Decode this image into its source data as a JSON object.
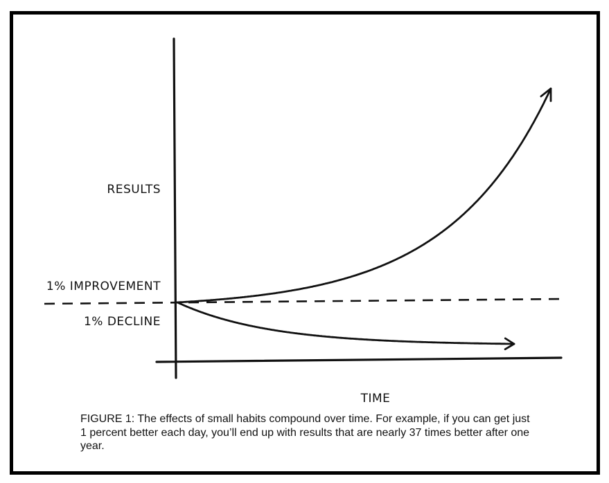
{
  "chart_data": {
    "type": "line",
    "title": "",
    "xlabel": "TIME",
    "ylabel": "RESULTS",
    "series": [
      {
        "name": "1% IMPROVEMENT",
        "growth_per_step": 1.01,
        "steps": 365,
        "style": "solid",
        "arrow": true
      },
      {
        "name": "1% DECLINE",
        "growth_per_step": 0.99,
        "steps": 365,
        "style": "solid",
        "arrow": true
      }
    ],
    "baseline": {
      "style": "dashed"
    },
    "grid": false,
    "legend": "none"
  },
  "caption": "FIGURE 1: The effects of small habits compound over time. For example, if you can get just 1 percent better each day, you’ll end up with results that are nearly 37 times better after one year.",
  "colors": {
    "ink": "#111111",
    "border": "#000000",
    "background": "#ffffff"
  }
}
